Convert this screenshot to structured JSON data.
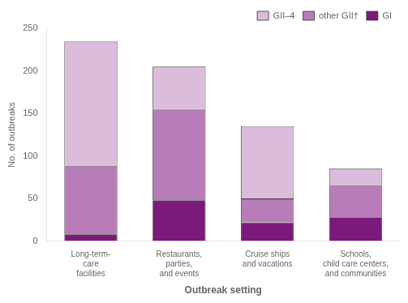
{
  "chart_data": {
    "type": "bar",
    "categories": [
      "Long-term-\ncare\nfacilities",
      "Restaurants,\nparties,\nand events",
      "Cruise ships\nand vacations",
      "Schools,\nchild care centers,\nand communities"
    ],
    "series": [
      {
        "name": "GI",
        "color": "#7b1a7b",
        "values": [
          8,
          48,
          22,
          28
        ]
      },
      {
        "name": "other GII†",
        "color": "#b87db8",
        "values": [
          80,
          107,
          28,
          37
        ]
      },
      {
        "name": "GII–4",
        "color": "#dbbcdb",
        "values": [
          147,
          50,
          85,
          20
        ]
      }
    ],
    "xlabel": "Outbreak setting",
    "ylabel": "No. of outbreaks",
    "ylim": [
      0,
      250
    ],
    "yticks": [
      0,
      50,
      100,
      150,
      200,
      250
    ],
    "stacked": true,
    "grid": false,
    "legend": "upper right"
  }
}
